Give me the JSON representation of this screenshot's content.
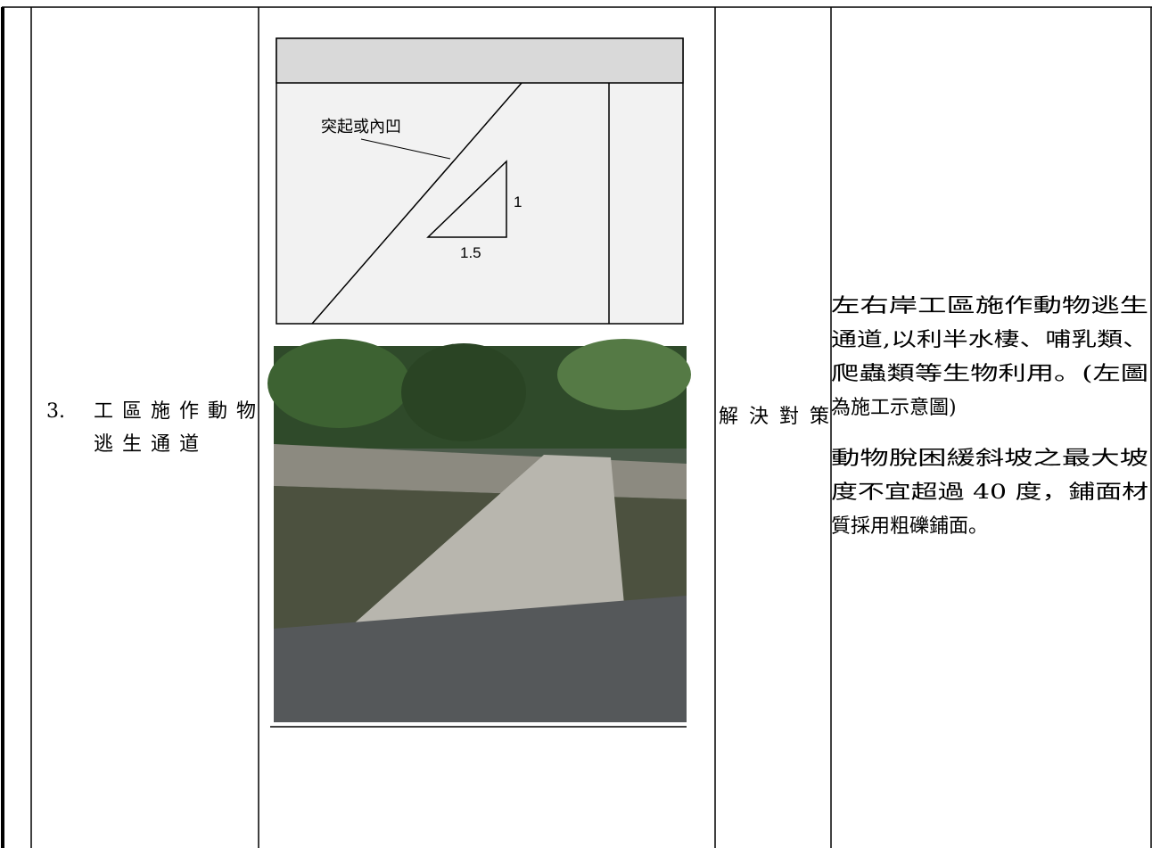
{
  "table": {
    "rows": [
      {
        "index": "3.",
        "item": [
          "工區施作動物",
          "逃生通道"
        ],
        "figure": {
          "label": "突起或內凹",
          "rise": "1",
          "run": "1.5"
        },
        "category": "解決對策",
        "description": [
          [
            "左右岸工區施作動物逃生",
            "通道,以利半水棲、哺乳類、",
            "爬蟲類等生物利用。(左圖",
            "為施工示意圖)"
          ],
          [
            "動物脫困緩斜坡之最大坡",
            "度不宜超過 40 度，鋪面材",
            "質採用粗礫鋪面。"
          ]
        ]
      }
    ]
  }
}
